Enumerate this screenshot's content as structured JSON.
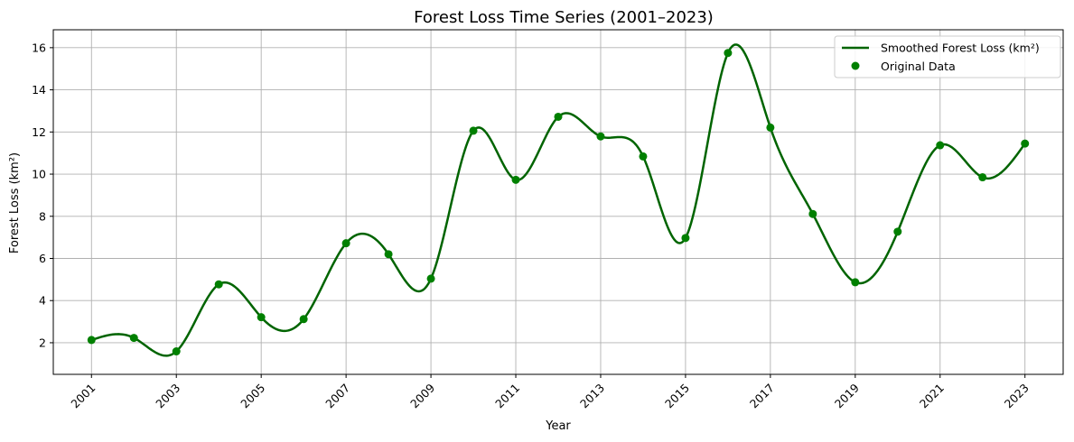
{
  "chart_data": {
    "type": "line",
    "title": "Forest Loss Time Series (2001–2023)",
    "xlabel": "Year",
    "ylabel": "Forest Loss (km²)",
    "xlim": [
      2000.1,
      2023.9
    ],
    "ylim": [
      0.5,
      16.85
    ],
    "x_ticks": [
      "2001",
      "2003",
      "2005",
      "2007",
      "2009",
      "2011",
      "2013",
      "2015",
      "2017",
      "2019",
      "2021",
      "2023"
    ],
    "x_tick_rotation": 45,
    "y_ticks": [
      "2",
      "4",
      "6",
      "8",
      "10",
      "12",
      "14",
      "16"
    ],
    "grid": true,
    "legend_position": "top-right",
    "series": [
      {
        "name": "Smoothed Forest Loss (km²)",
        "kind": "smoothed-line",
        "color": "#006400"
      },
      {
        "name": "Original Data",
        "kind": "scatter",
        "color": "#008000",
        "x": [
          2001,
          2002,
          2003,
          2004,
          2005,
          2006,
          2007,
          2008,
          2009,
          2010,
          2011,
          2012,
          2013,
          2014,
          2015,
          2016,
          2017,
          2018,
          2019,
          2020,
          2021,
          2022,
          2023
        ],
        "y": [
          2.13,
          2.23,
          1.59,
          4.77,
          3.21,
          3.12,
          6.72,
          6.2,
          5.04,
          12.06,
          9.73,
          12.72,
          11.79,
          10.84,
          6.97,
          15.75,
          12.21,
          8.11,
          4.87,
          7.27,
          11.37,
          9.85,
          11.45
        ]
      }
    ]
  }
}
